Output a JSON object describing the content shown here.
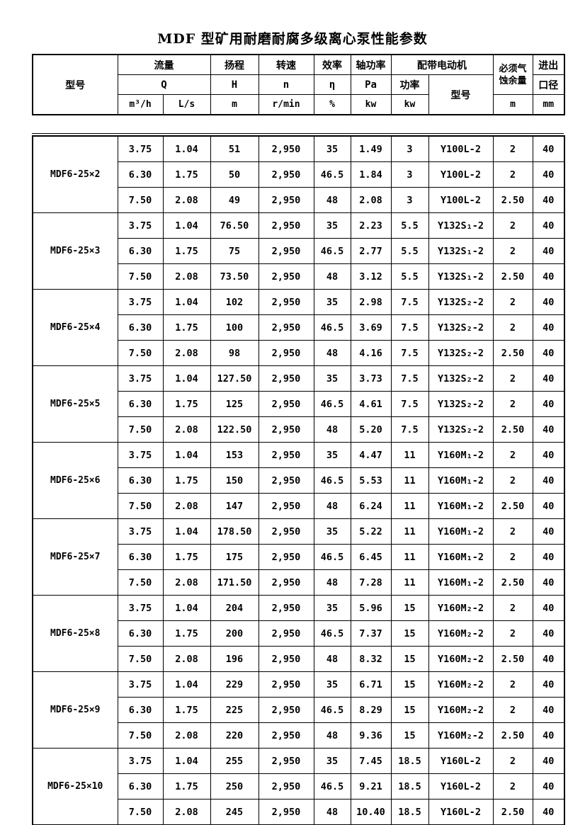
{
  "title": "MDF 型矿用耐磨耐腐多级离心泵性能参数",
  "header": {
    "model": "型号",
    "flow": "流量",
    "flow_q": "Q",
    "flow_unit_m3h": "m³/h",
    "flow_unit_ls": "L/s",
    "head": "扬程",
    "head_sym": "H",
    "head_unit": "m",
    "speed": "转速",
    "speed_sym": "n",
    "speed_unit": "r/min",
    "efficiency": "效率",
    "efficiency_sym": "η",
    "efficiency_unit": "%",
    "shaft_power": "轴功率",
    "shaft_power_sym": "Pa",
    "shaft_power_unit": "kw",
    "motor": "配带电动机",
    "motor_power": "功率",
    "motor_power_unit": "kw",
    "motor_model": "型号",
    "npsh_line1": "必须气",
    "npsh_line2": "蚀余量",
    "npsh_unit": "m",
    "port_line1": "进出",
    "port_line2": "口径",
    "port_unit": "mm"
  },
  "groups": [
    {
      "model": "MDF6-25×2",
      "rows": [
        [
          "3.75",
          "1.04",
          "51",
          "2,950",
          "35",
          "1.49",
          "3",
          "Y100L-2",
          "2",
          "40"
        ],
        [
          "6.30",
          "1.75",
          "50",
          "2,950",
          "46.5",
          "1.84",
          "3",
          "Y100L-2",
          "2",
          "40"
        ],
        [
          "7.50",
          "2.08",
          "49",
          "2,950",
          "48",
          "2.08",
          "3",
          "Y100L-2",
          "2.50",
          "40"
        ]
      ]
    },
    {
      "model": "MDF6-25×3",
      "rows": [
        [
          "3.75",
          "1.04",
          "76.50",
          "2,950",
          "35",
          "2.23",
          "5.5",
          "Y132S₁-2",
          "2",
          "40"
        ],
        [
          "6.30",
          "1.75",
          "75",
          "2,950",
          "46.5",
          "2.77",
          "5.5",
          "Y132S₁-2",
          "2",
          "40"
        ],
        [
          "7.50",
          "2.08",
          "73.50",
          "2,950",
          "48",
          "3.12",
          "5.5",
          "Y132S₁-2",
          "2.50",
          "40"
        ]
      ]
    },
    {
      "model": "MDF6-25×4",
      "rows": [
        [
          "3.75",
          "1.04",
          "102",
          "2,950",
          "35",
          "2.98",
          "7.5",
          "Y132S₂-2",
          "2",
          "40"
        ],
        [
          "6.30",
          "1.75",
          "100",
          "2,950",
          "46.5",
          "3.69",
          "7.5",
          "Y132S₂-2",
          "2",
          "40"
        ],
        [
          "7.50",
          "2.08",
          "98",
          "2,950",
          "48",
          "4.16",
          "7.5",
          "Y132S₂-2",
          "2.50",
          "40"
        ]
      ]
    },
    {
      "model": "MDF6-25×5",
      "rows": [
        [
          "3.75",
          "1.04",
          "127.50",
          "2,950",
          "35",
          "3.73",
          "7.5",
          "Y132S₂-2",
          "2",
          "40"
        ],
        [
          "6.30",
          "1.75",
          "125",
          "2,950",
          "46.5",
          "4.61",
          "7.5",
          "Y132S₂-2",
          "2",
          "40"
        ],
        [
          "7.50",
          "2.08",
          "122.50",
          "2,950",
          "48",
          "5.20",
          "7.5",
          "Y132S₂-2",
          "2.50",
          "40"
        ]
      ]
    },
    {
      "model": "MDF6-25×6",
      "rows": [
        [
          "3.75",
          "1.04",
          "153",
          "2,950",
          "35",
          "4.47",
          "11",
          "Y160M₁-2",
          "2",
          "40"
        ],
        [
          "6.30",
          "1.75",
          "150",
          "2,950",
          "46.5",
          "5.53",
          "11",
          "Y160M₁-2",
          "2",
          "40"
        ],
        [
          "7.50",
          "2.08",
          "147",
          "2,950",
          "48",
          "6.24",
          "11",
          "Y160M₁-2",
          "2.50",
          "40"
        ]
      ]
    },
    {
      "model": "MDF6-25×7",
      "rows": [
        [
          "3.75",
          "1.04",
          "178.50",
          "2,950",
          "35",
          "5.22",
          "11",
          "Y160M₁-2",
          "2",
          "40"
        ],
        [
          "6.30",
          "1.75",
          "175",
          "2,950",
          "46.5",
          "6.45",
          "11",
          "Y160M₁-2",
          "2",
          "40"
        ],
        [
          "7.50",
          "2.08",
          "171.50",
          "2,950",
          "48",
          "7.28",
          "11",
          "Y160M₁-2",
          "2.50",
          "40"
        ]
      ]
    },
    {
      "model": "MDF6-25×8",
      "rows": [
        [
          "3.75",
          "1.04",
          "204",
          "2,950",
          "35",
          "5.96",
          "15",
          "Y160M₂-2",
          "2",
          "40"
        ],
        [
          "6.30",
          "1.75",
          "200",
          "2,950",
          "46.5",
          "7.37",
          "15",
          "Y160M₂-2",
          "2",
          "40"
        ],
        [
          "7.50",
          "2.08",
          "196",
          "2,950",
          "48",
          "8.32",
          "15",
          "Y160M₂-2",
          "2.50",
          "40"
        ]
      ]
    },
    {
      "model": "MDF6-25×9",
      "rows": [
        [
          "3.75",
          "1.04",
          "229",
          "2,950",
          "35",
          "6.71",
          "15",
          "Y160M₂-2",
          "2",
          "40"
        ],
        [
          "6.30",
          "1.75",
          "225",
          "2,950",
          "46.5",
          "8.29",
          "15",
          "Y160M₂-2",
          "2",
          "40"
        ],
        [
          "7.50",
          "2.08",
          "220",
          "2,950",
          "48",
          "9.36",
          "15",
          "Y160M₂-2",
          "2.50",
          "40"
        ]
      ]
    },
    {
      "model": "MDF6-25×10",
      "rows": [
        [
          "3.75",
          "1.04",
          "255",
          "2,950",
          "35",
          "7.45",
          "18.5",
          "Y160L-2",
          "2",
          "40"
        ],
        [
          "6.30",
          "1.75",
          "250",
          "2,950",
          "46.5",
          "9.21",
          "18.5",
          "Y160L-2",
          "2",
          "40"
        ],
        [
          "7.50",
          "2.08",
          "245",
          "2,950",
          "48",
          "10.40",
          "18.5",
          "Y160L-2",
          "2.50",
          "40"
        ]
      ]
    }
  ]
}
